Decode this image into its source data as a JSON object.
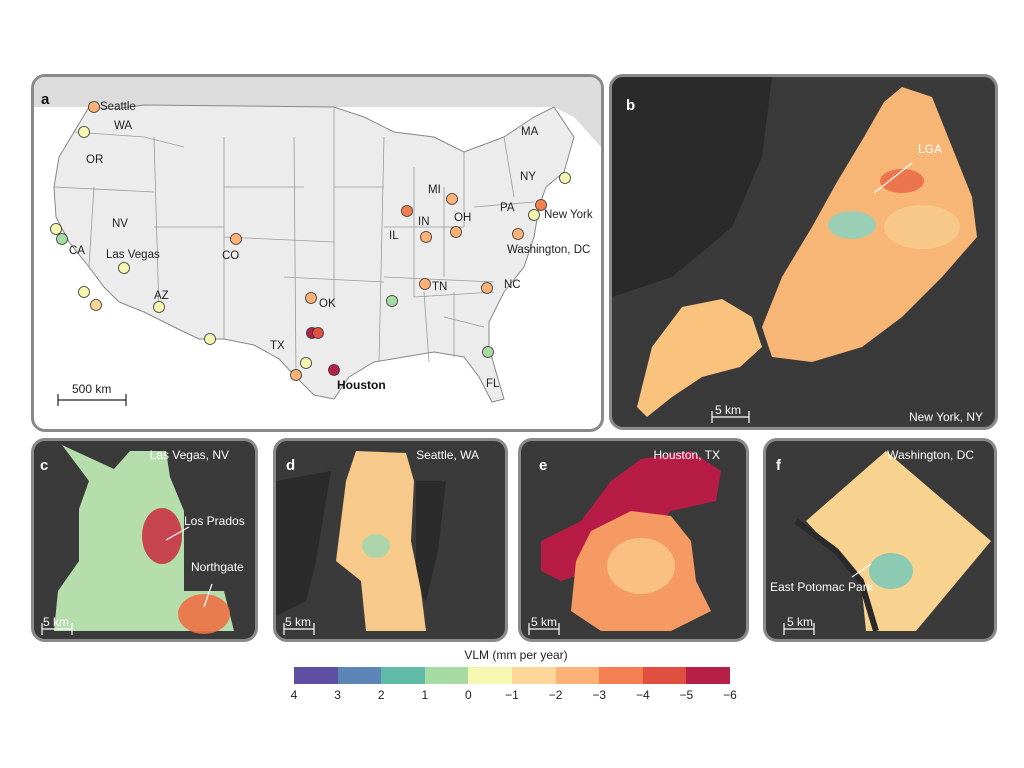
{
  "panels": {
    "a": {
      "label": "a",
      "scale": "500 km",
      "states": [
        "WA",
        "OR",
        "CA",
        "NV",
        "AZ",
        "CO",
        "TX",
        "OK",
        "IL",
        "IN",
        "MI",
        "OH",
        "TN",
        "NC",
        "PA",
        "NY",
        "MA",
        "FL"
      ],
      "cities": [
        "Seattle",
        "Las Vegas",
        "Houston",
        "New York",
        "Washington, DC"
      ],
      "sites": [
        {
          "id": "seattle",
          "vlm": -2.0
        },
        {
          "id": "wa2",
          "vlm": -0.8
        },
        {
          "id": "ca1",
          "vlm": -0.6
        },
        {
          "id": "ca2",
          "vlm": 0.4
        },
        {
          "id": "lasvegas",
          "vlm": -0.8
        },
        {
          "id": "ca3",
          "vlm": -0.7
        },
        {
          "id": "ca4",
          "vlm": -1.8
        },
        {
          "id": "az",
          "vlm": -0.8
        },
        {
          "id": "co",
          "vlm": -2.2
        },
        {
          "id": "nm",
          "vlm": -0.8
        },
        {
          "id": "ok",
          "vlm": -2.0
        },
        {
          "id": "dallas1",
          "vlm": -5.0
        },
        {
          "id": "dallas2",
          "vlm": -4.5
        },
        {
          "id": "tx3",
          "vlm": -0.8
        },
        {
          "id": "tx4",
          "vlm": -2.0
        },
        {
          "id": "houston",
          "vlm": -6.0
        },
        {
          "id": "il",
          "vlm": -3.0
        },
        {
          "id": "in",
          "vlm": -2.0
        },
        {
          "id": "mi",
          "vlm": -2.0
        },
        {
          "id": "oh",
          "vlm": -2.0
        },
        {
          "id": "tn",
          "vlm": -2.0
        },
        {
          "id": "memphis",
          "vlm": 0.6
        },
        {
          "id": "nc",
          "vlm": -2.0
        },
        {
          "id": "fl",
          "vlm": 0.6
        },
        {
          "id": "newyork",
          "vlm": -3.2
        },
        {
          "id": "ny2",
          "vlm": -0.6
        },
        {
          "id": "pa",
          "vlm": -0.6
        },
        {
          "id": "dc",
          "vlm": -2.0
        }
      ]
    },
    "b": {
      "label": "b",
      "title": "New York, NY",
      "annotation": "LGA",
      "scale": "5 km"
    },
    "c": {
      "label": "c",
      "title": "Las Vegas, NV",
      "annotations": [
        "Los Prados",
        "Northgate"
      ],
      "scale": "5 km"
    },
    "d": {
      "label": "d",
      "title": "Seattle, WA",
      "scale": "5 km"
    },
    "e": {
      "label": "e",
      "title": "Houston, TX",
      "scale": "5 km"
    },
    "f": {
      "label": "f",
      "title": "Washington, DC",
      "annotation": "East Potomac Park",
      "scale": "5 km"
    }
  },
  "legend": {
    "title": "VLM (mm per year)",
    "ticks": [
      "4",
      "3",
      "2",
      "1",
      "0",
      "−1",
      "−2",
      "−3",
      "−4",
      "−5",
      "−6"
    ],
    "colors": [
      "#5e4fa2",
      "#5b86b6",
      "#5fbaa8",
      "#a6dba4",
      "#f6f7b0",
      "#fdd699",
      "#fcb177",
      "#f67f52",
      "#e04f40",
      "#b51f48"
    ]
  }
}
